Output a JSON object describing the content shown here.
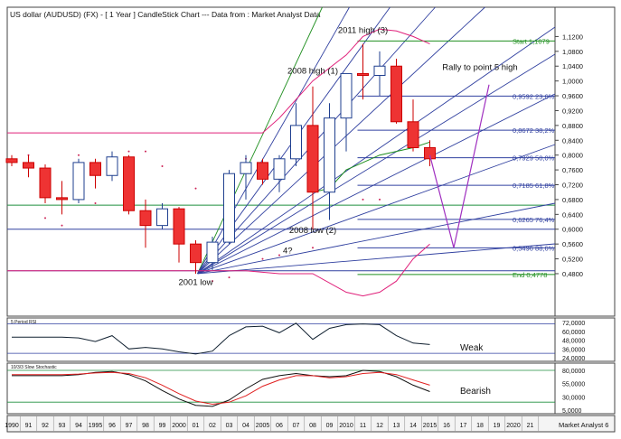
{
  "header": {
    "title": "US dollar (AUDUSD) (FX) -  [ 1 Year ] CandleStick Chart --- Data from : Market Analyst Data"
  },
  "colors": {
    "bull_body": "#ffffff",
    "bull_edge": "#1f3f8f",
    "bear_body": "#ee3333",
    "bear_edge": "#cc0000",
    "fan": "#2f3f9f",
    "fan_green": "#1f8f1f",
    "bands": "#e0207a",
    "purple": "#a030c0",
    "fib": "#3040a0",
    "rsi": "#102030",
    "stoch_k": "#101010",
    "stoch_d": "#e02020",
    "grid_green": "#1f8f3f",
    "axis_bg": "#f5f5f5"
  },
  "chart_data": [
    {
      "type": "candlestick",
      "title": "US dollar (AUDUSD) (FX) -  [ 1 Year ] CandleStick Chart --- Data from : Market Analyst Data",
      "x_labels": [
        "1990",
        "91",
        "92",
        "93",
        "94",
        "1995",
        "96",
        "97",
        "98",
        "99",
        "2000",
        "01",
        "02",
        "03",
        "04",
        "2005",
        "06",
        "07",
        "08",
        "09",
        "2010",
        "11",
        "12",
        "13",
        "14",
        "2015",
        "16",
        "17",
        "18",
        "19",
        "2020",
        "21"
      ],
      "axis_footer": "Market Analyst 6",
      "ylim": [
        0.38,
        1.16
      ],
      "y_ticks": [
        "0,4800",
        "0,5200",
        "0,5600",
        "0,6000",
        "0,6400",
        "0,6800",
        "0,7200",
        "0,7600",
        "0,8000",
        "0,8400",
        "0,8800",
        "0,9200",
        "0,9600",
        "1,0000",
        "1,0400",
        "1,0800",
        "1,1200"
      ],
      "candles": [
        {
          "x": "1990",
          "open": 0.79,
          "high": 0.8,
          "low": 0.77,
          "close": 0.78
        },
        {
          "x": "91",
          "open": 0.78,
          "high": 0.8,
          "low": 0.74,
          "close": 0.765
        },
        {
          "x": "92",
          "open": 0.765,
          "high": 0.775,
          "low": 0.67,
          "close": 0.685
        },
        {
          "x": "93",
          "open": 0.685,
          "high": 0.73,
          "low": 0.64,
          "close": 0.68
        },
        {
          "x": "94",
          "open": 0.68,
          "high": 0.79,
          "low": 0.67,
          "close": 0.78
        },
        {
          "x": "1995",
          "open": 0.78,
          "high": 0.79,
          "low": 0.71,
          "close": 0.745
        },
        {
          "x": "96",
          "open": 0.745,
          "high": 0.81,
          "low": 0.73,
          "close": 0.795
        },
        {
          "x": "97",
          "open": 0.795,
          "high": 0.8,
          "low": 0.64,
          "close": 0.65
        },
        {
          "x": "98",
          "open": 0.65,
          "high": 0.68,
          "low": 0.55,
          "close": 0.61
        },
        {
          "x": "99",
          "open": 0.61,
          "high": 0.67,
          "low": 0.6,
          "close": 0.655
        },
        {
          "x": "2000",
          "open": 0.655,
          "high": 0.66,
          "low": 0.51,
          "close": 0.56
        },
        {
          "x": "01",
          "open": 0.56,
          "high": 0.57,
          "low": 0.48,
          "close": 0.51
        },
        {
          "x": "02",
          "open": 0.51,
          "high": 0.58,
          "low": 0.49,
          "close": 0.565
        },
        {
          "x": "03",
          "open": 0.565,
          "high": 0.76,
          "low": 0.56,
          "close": 0.75
        },
        {
          "x": "04",
          "open": 0.75,
          "high": 0.8,
          "low": 0.68,
          "close": 0.78
        },
        {
          "x": "2005",
          "open": 0.78,
          "high": 0.79,
          "low": 0.72,
          "close": 0.735
        },
        {
          "x": "06",
          "open": 0.735,
          "high": 0.8,
          "low": 0.7,
          "close": 0.79
        },
        {
          "x": "07",
          "open": 0.79,
          "high": 0.94,
          "low": 0.77,
          "close": 0.88
        },
        {
          "x": "08",
          "open": 0.88,
          "high": 0.985,
          "low": 0.6,
          "close": 0.7
        },
        {
          "x": "09",
          "open": 0.7,
          "high": 0.94,
          "low": 0.625,
          "close": 0.9
        },
        {
          "x": "2010",
          "open": 0.9,
          "high": 1.02,
          "low": 0.81,
          "close": 1.02
        },
        {
          "x": "11",
          "open": 1.02,
          "high": 1.1,
          "low": 0.95,
          "close": 1.015
        },
        {
          "x": "12",
          "open": 1.015,
          "high": 1.08,
          "low": 0.96,
          "close": 1.04
        },
        {
          "x": "13",
          "open": 1.04,
          "high": 1.06,
          "low": 0.885,
          "close": 0.89
        },
        {
          "x": "14",
          "open": 0.89,
          "high": 0.95,
          "low": 0.81,
          "close": 0.82
        },
        {
          "x": "2015",
          "open": 0.82,
          "high": 0.84,
          "low": 0.77,
          "close": 0.79
        }
      ],
      "fib_levels": [
        {
          "label": "Start 1,1079",
          "value": 1.1079
        },
        {
          "label": "0,9592 23,6%",
          "value": 0.9592
        },
        {
          "label": "0,8672 38,2%",
          "value": 0.8672
        },
        {
          "label": "0,7929 50,0%",
          "value": 0.7929
        },
        {
          "label": "0,7185 61,8%",
          "value": 0.7185
        },
        {
          "label": "0,6265 76,4%",
          "value": 0.6265
        },
        {
          "label": "0,5496 88,6%",
          "value": 0.5496
        },
        {
          "label": "End 0,4778",
          "value": 0.4778
        }
      ],
      "annotations": [
        {
          "text": "2011 high (3)",
          "x": "11",
          "y": 1.13
        },
        {
          "text": "2008 high (1)",
          "x": "08",
          "y": 1.02
        },
        {
          "text": "Rally to point 5 high",
          "x": "18",
          "y": 1.03
        },
        {
          "text": "2008 low (2)",
          "x": "08",
          "y": 0.59
        },
        {
          "text": "4?",
          "x": "16.5",
          "y": 0.535
        },
        {
          "text": "2001 low",
          "x": "01",
          "y": 0.45
        }
      ]
    },
    {
      "type": "line",
      "title": "5 Period RSI",
      "label": "Weak",
      "ylim": [
        24,
        72
      ],
      "y_ticks": [
        "72,0000",
        "60,0000",
        "48,0000",
        "36,0000",
        "24,0000"
      ],
      "x": [
        "1990",
        "91",
        "92",
        "93",
        "94",
        "1995",
        "96",
        "97",
        "98",
        "99",
        "2000",
        "01",
        "02",
        "03",
        "04",
        "2005",
        "06",
        "07",
        "08",
        "09",
        "2010",
        "11",
        "12",
        "13",
        "14",
        "2015"
      ],
      "values": [
        52,
        52,
        52,
        52,
        51,
        46,
        54,
        36,
        38,
        36,
        32,
        29,
        33,
        54,
        66,
        67,
        58,
        71,
        49,
        64,
        69,
        70,
        69,
        54,
        44,
        42
      ]
    },
    {
      "type": "line",
      "title": "10/3/3 Slow Stochastic",
      "label": "Bearish",
      "ylim": [
        5,
        80
      ],
      "y_ticks": [
        "80,0000",
        "55,0000",
        "30,0000",
        "5,0000"
      ],
      "x": [
        "1990",
        "91",
        "92",
        "93",
        "94",
        "1995",
        "96",
        "97",
        "98",
        "99",
        "2000",
        "01",
        "02",
        "03",
        "04",
        "2005",
        "06",
        "07",
        "08",
        "09",
        "2010",
        "11",
        "12",
        "13",
        "14",
        "2015"
      ],
      "series": [
        {
          "values": [
            70,
            70,
            70,
            70,
            72,
            76,
            78,
            72,
            60,
            42,
            26,
            14,
            12,
            24,
            45,
            63,
            70,
            74,
            70,
            68,
            70,
            80,
            78,
            68,
            52,
            40
          ]
        },
        {
          "values": [
            72,
            72,
            72,
            72,
            73,
            75,
            76,
            74,
            66,
            52,
            36,
            22,
            16,
            20,
            32,
            50,
            62,
            70,
            70,
            66,
            68,
            74,
            76,
            72,
            62,
            52
          ]
        }
      ]
    }
  ]
}
